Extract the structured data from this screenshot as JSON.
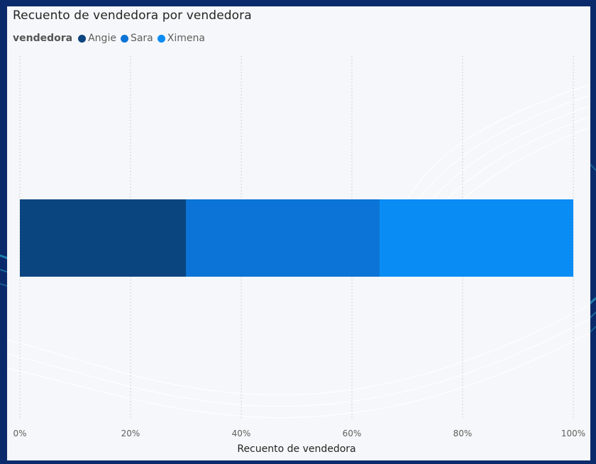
{
  "chart_data": {
    "type": "bar",
    "orientation": "horizontal",
    "stacked": "100%",
    "title": "Recuento de vendedora por vendedora",
    "legend_title": "vendedora",
    "legend_position": "top-left",
    "xlabel": "Recuento de vendedora",
    "ylabel": "",
    "xlim": [
      0,
      100
    ],
    "x_ticks": [
      "0%",
      "20%",
      "40%",
      "60%",
      "80%",
      "100%"
    ],
    "grid": "vertical-dotted",
    "series": [
      {
        "name": "Angie",
        "value_percent": 30,
        "color": "#0b4580"
      },
      {
        "name": "Sara",
        "value_percent": 35,
        "color": "#0c74d6"
      },
      {
        "name": "Ximena",
        "value_percent": 35,
        "color": "#0a8cf5"
      }
    ]
  },
  "colors": {
    "background": "#0b2a6b",
    "card": "#f5f7fa",
    "accent_wave": "#33c6e6"
  }
}
